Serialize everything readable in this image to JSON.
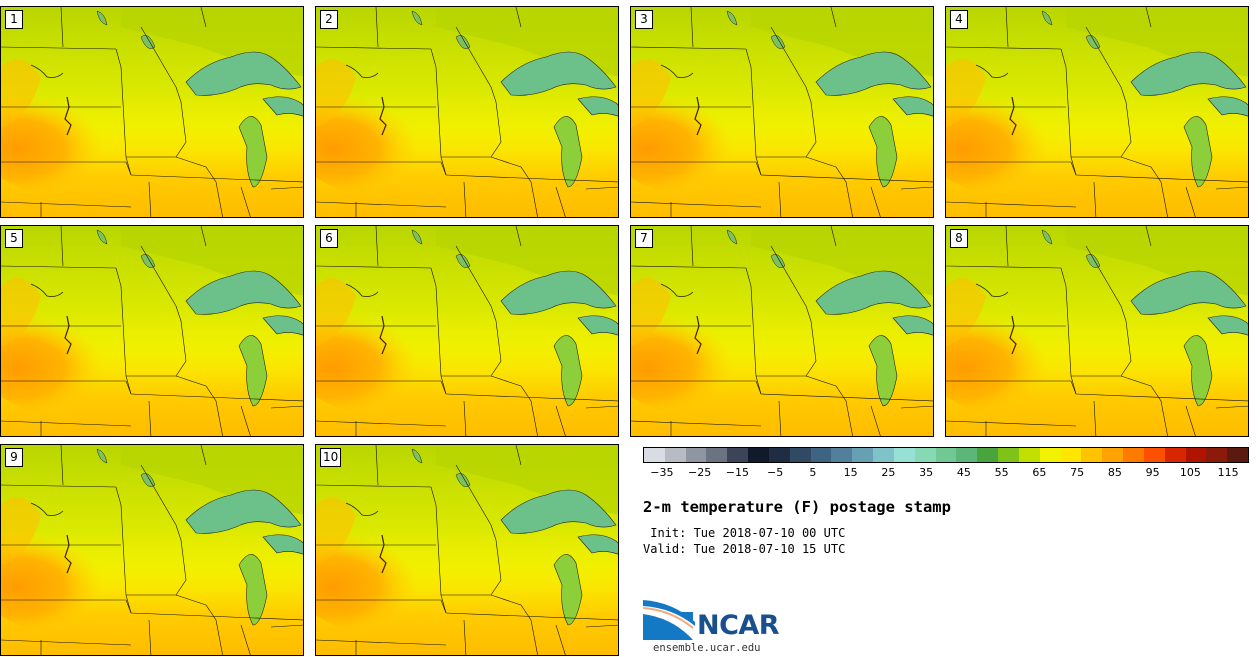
{
  "panels": [
    {
      "label": "1"
    },
    {
      "label": "2"
    },
    {
      "label": "3"
    },
    {
      "label": "4"
    },
    {
      "label": "5"
    },
    {
      "label": "6"
    },
    {
      "label": "7"
    },
    {
      "label": "8"
    },
    {
      "label": "9"
    },
    {
      "label": "10"
    }
  ],
  "colorbar": {
    "colors": [
      "#d9dde3",
      "#b7bcc4",
      "#8f96a1",
      "#6b7282",
      "#3c4457",
      "#111a2b",
      "#1f2d43",
      "#2f4a62",
      "#3f6482",
      "#52809a",
      "#67a0b3",
      "#7fc2c8",
      "#96e0d6",
      "#87d9b4",
      "#72c893",
      "#5cb67a",
      "#4aa43d",
      "#7ec21a",
      "#c2e000",
      "#f2f200",
      "#ffe500",
      "#ffc400",
      "#ffa300",
      "#ff7b00",
      "#ff4f00",
      "#d72600",
      "#b01400",
      "#8b1a0a",
      "#5a1a10"
    ],
    "tick_labels": [
      "−35",
      "−25",
      "−15",
      "−5",
      "5",
      "15",
      "25",
      "35",
      "45",
      "55",
      "65",
      "75",
      "85",
      "95",
      "105",
      "115"
    ],
    "tick_values": [
      -35,
      -25,
      -15,
      -5,
      5,
      15,
      25,
      35,
      45,
      55,
      65,
      75,
      85,
      95,
      105,
      115
    ],
    "min": -40,
    "max": 120
  },
  "title": "2-m temperature (F) postage stamp",
  "init": " Init: Tue 2018-07-10 00 UTC",
  "valid": "Valid: Tue 2018-07-10 15 UTC",
  "logo": {
    "name": "NCAR",
    "site": "ensemble.ucar.edu"
  }
}
